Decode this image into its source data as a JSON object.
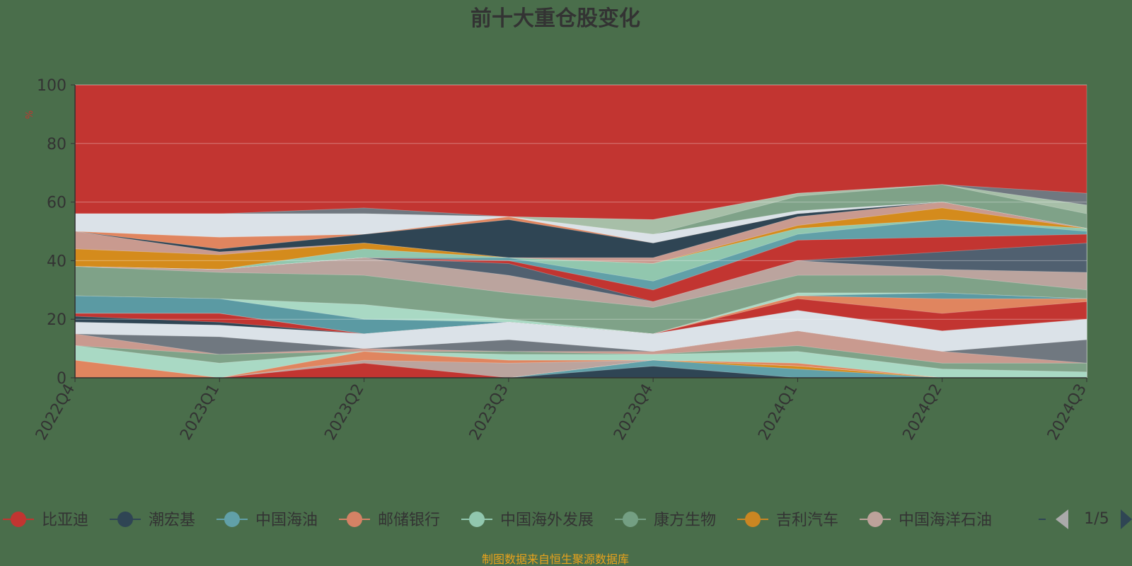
{
  "chart_data": {
    "type": "area",
    "title": "前十大重仓股变化",
    "ylabel": "%",
    "ylim": [
      0,
      100
    ],
    "yticks": [
      "0",
      "20",
      "40",
      "60",
      "80",
      "100"
    ],
    "categories": [
      "2022Q4",
      "2023Q1",
      "2023Q2",
      "2023Q3",
      "2023Q4",
      "2024Q1",
      "2024Q2",
      "2024Q3"
    ],
    "layers": [
      {
        "color": "#c23531",
        "top": [
          100,
          100,
          100,
          100,
          100,
          100,
          100,
          100
        ]
      },
      {
        "color": "#707880",
        "top": [
          56,
          56,
          58,
          55,
          54,
          63,
          66,
          63
        ]
      },
      {
        "color": "#a7bfa8",
        "top": [
          56,
          56,
          56,
          55,
          54,
          63,
          66,
          59
        ]
      },
      {
        "color": "#7fa288",
        "top": [
          56,
          56,
          56,
          55,
          49,
          62,
          66,
          56
        ]
      },
      {
        "color": "#dbe2e8",
        "top": [
          56,
          56,
          56,
          55,
          49,
          57,
          60,
          51
        ]
      },
      {
        "color": "#e0855f",
        "top": [
          50,
          48,
          49,
          55,
          46,
          56,
          60,
          51
        ]
      },
      {
        "color": "#2f4554",
        "top": [
          50,
          44,
          49,
          54,
          46,
          56,
          60,
          51
        ]
      },
      {
        "color": "#c99a8f",
        "top": [
          50,
          43,
          46,
          41,
          41,
          55,
          60,
          51
        ]
      },
      {
        "color": "#d48b1c",
        "top": [
          44,
          42,
          46,
          41,
          39,
          52,
          58,
          51
        ]
      },
      {
        "color": "#91c7ae",
        "top": [
          38,
          37,
          44,
          41,
          39,
          51,
          54,
          51
        ]
      },
      {
        "color": "#61a0a8",
        "top": [
          38,
          37,
          41,
          41,
          33,
          49,
          54,
          50
        ]
      },
      {
        "color": "#c23531",
        "top": [
          38,
          37,
          41,
          40,
          30,
          47,
          48,
          49
        ]
      },
      {
        "color": "#506070",
        "top": [
          38,
          37,
          41,
          39,
          26,
          40,
          43,
          46
        ]
      },
      {
        "color": "#bba49e",
        "top": [
          38,
          37,
          41,
          35,
          26,
          40,
          37,
          36
        ]
      },
      {
        "color": "#7fa288",
        "top": [
          38,
          36,
          35,
          29,
          24,
          35,
          35,
          30
        ]
      },
      {
        "color": "#a9d9c4",
        "top": [
          28,
          27,
          25,
          20,
          15,
          29,
          29,
          27
        ]
      },
      {
        "color": "#5b9aa3",
        "top": [
          28,
          27,
          20,
          19,
          15,
          28,
          29,
          27
        ]
      },
      {
        "color": "#e0855f",
        "top": [
          22,
          22,
          15,
          19,
          15,
          28,
          27,
          27
        ]
      },
      {
        "color": "#c23531",
        "top": [
          22,
          22,
          15,
          19,
          15,
          27,
          22,
          26
        ]
      },
      {
        "color": "#2f4554",
        "top": [
          21,
          19,
          15,
          19,
          15,
          23,
          16,
          20
        ]
      },
      {
        "color": "#dbe2e8",
        "top": [
          19,
          18,
          15,
          19,
          15,
          23,
          16,
          20
        ]
      },
      {
        "color": "#707880",
        "top": [
          15,
          14,
          10,
          13,
          9,
          16,
          9,
          13
        ]
      },
      {
        "color": "#c99a8f",
        "top": [
          15,
          8,
          10,
          9,
          9,
          16,
          9,
          5
        ]
      },
      {
        "color": "#7fa288",
        "top": [
          11,
          8,
          9,
          9,
          8,
          11,
          5,
          5
        ]
      },
      {
        "color": "#a9d9c4",
        "top": [
          11,
          5,
          9,
          8,
          8,
          9,
          3,
          2
        ]
      },
      {
        "color": "#e0855f",
        "top": [
          6,
          0,
          9,
          6,
          6,
          5,
          0,
          0
        ]
      },
      {
        "color": "#bba49e",
        "top": [
          0,
          0,
          6,
          5,
          6,
          4,
          0,
          0
        ]
      },
      {
        "color": "#c23531",
        "top": [
          0,
          0,
          5,
          0,
          6,
          4,
          0,
          0
        ]
      },
      {
        "color": "#d48b1c",
        "top": [
          0,
          0,
          0,
          0,
          6,
          4,
          0,
          0
        ]
      },
      {
        "color": "#61a0a8",
        "top": [
          0,
          0,
          0,
          0,
          6,
          3,
          0,
          0
        ]
      },
      {
        "color": "#2f4554",
        "top": [
          0,
          0,
          0,
          0,
          4,
          0,
          0,
          0
        ]
      }
    ],
    "legend": [
      {
        "name": "比亚迪",
        "color": "#c23531"
      },
      {
        "name": "潮宏基",
        "color": "#2f4554"
      },
      {
        "name": "中国海油",
        "color": "#61a0a8"
      },
      {
        "name": "邮储银行",
        "color": "#d48265"
      },
      {
        "name": "中国海外发展",
        "color": "#91c7ae"
      },
      {
        "name": "康方生物",
        "color": "#749f83"
      },
      {
        "name": "吉利汽车",
        "color": "#ca8622"
      },
      {
        "name": "中国海洋石油",
        "color": "#bda29a"
      }
    ],
    "legend_page": "1/5",
    "source": "制图数据来自恒生聚源数据库"
  }
}
